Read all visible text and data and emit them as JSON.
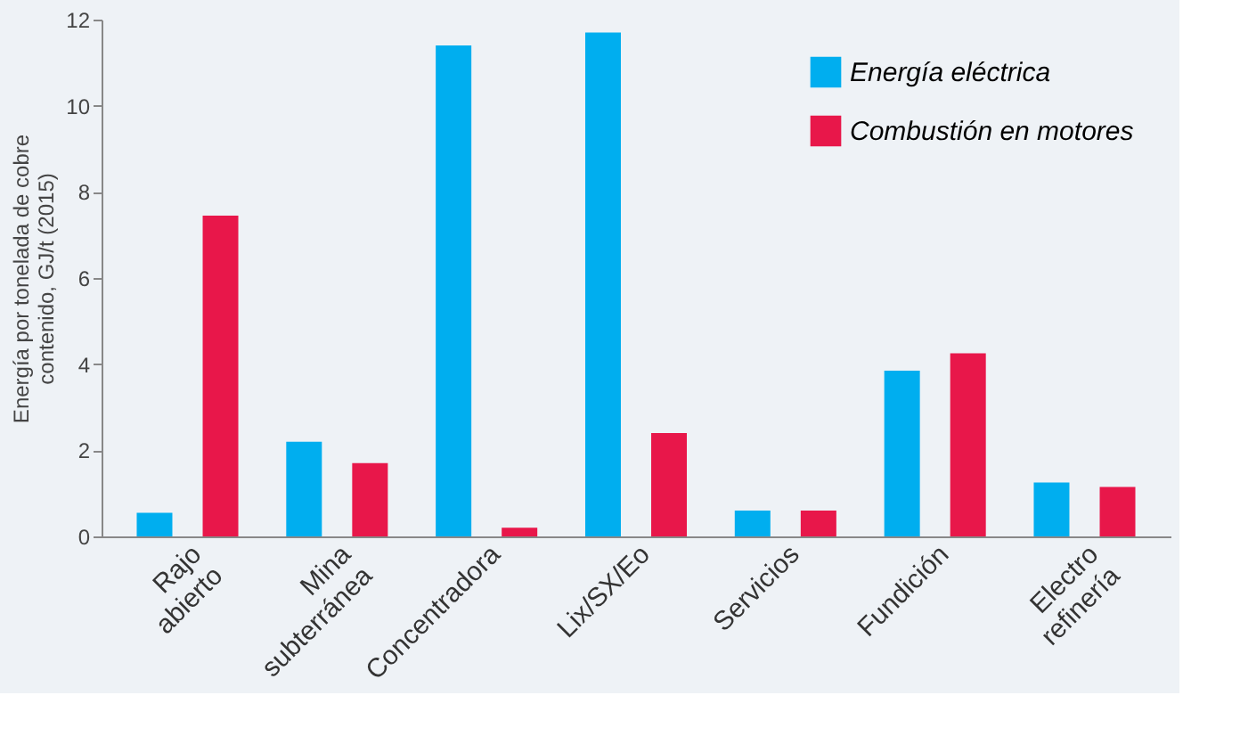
{
  "chart_data": {
    "type": "bar",
    "ylabel": "Energía por tonelada de cobre\ncontenido, GJ/t (2015)",
    "categories": [
      "Rajo\nabierto",
      "Mina\nsubterránea",
      "Concentradora",
      "Lix/SX/Eo",
      "Servicios",
      "Fundición",
      "Electro\nrefinería"
    ],
    "series": [
      {
        "name": "Energía eléctrica",
        "color": "#00aeef",
        "values": [
          0.55,
          2.2,
          11.4,
          11.7,
          0.6,
          3.85,
          1.25
        ]
      },
      {
        "name": "Combustión en motores",
        "color": "#e8174a",
        "values": [
          7.45,
          1.7,
          0.2,
          2.4,
          0.6,
          4.25,
          1.15
        ]
      }
    ],
    "ylim": [
      0,
      12
    ],
    "yticks": [
      0,
      2,
      4,
      6,
      8,
      10,
      12
    ],
    "grid": false,
    "legend": "top right"
  }
}
